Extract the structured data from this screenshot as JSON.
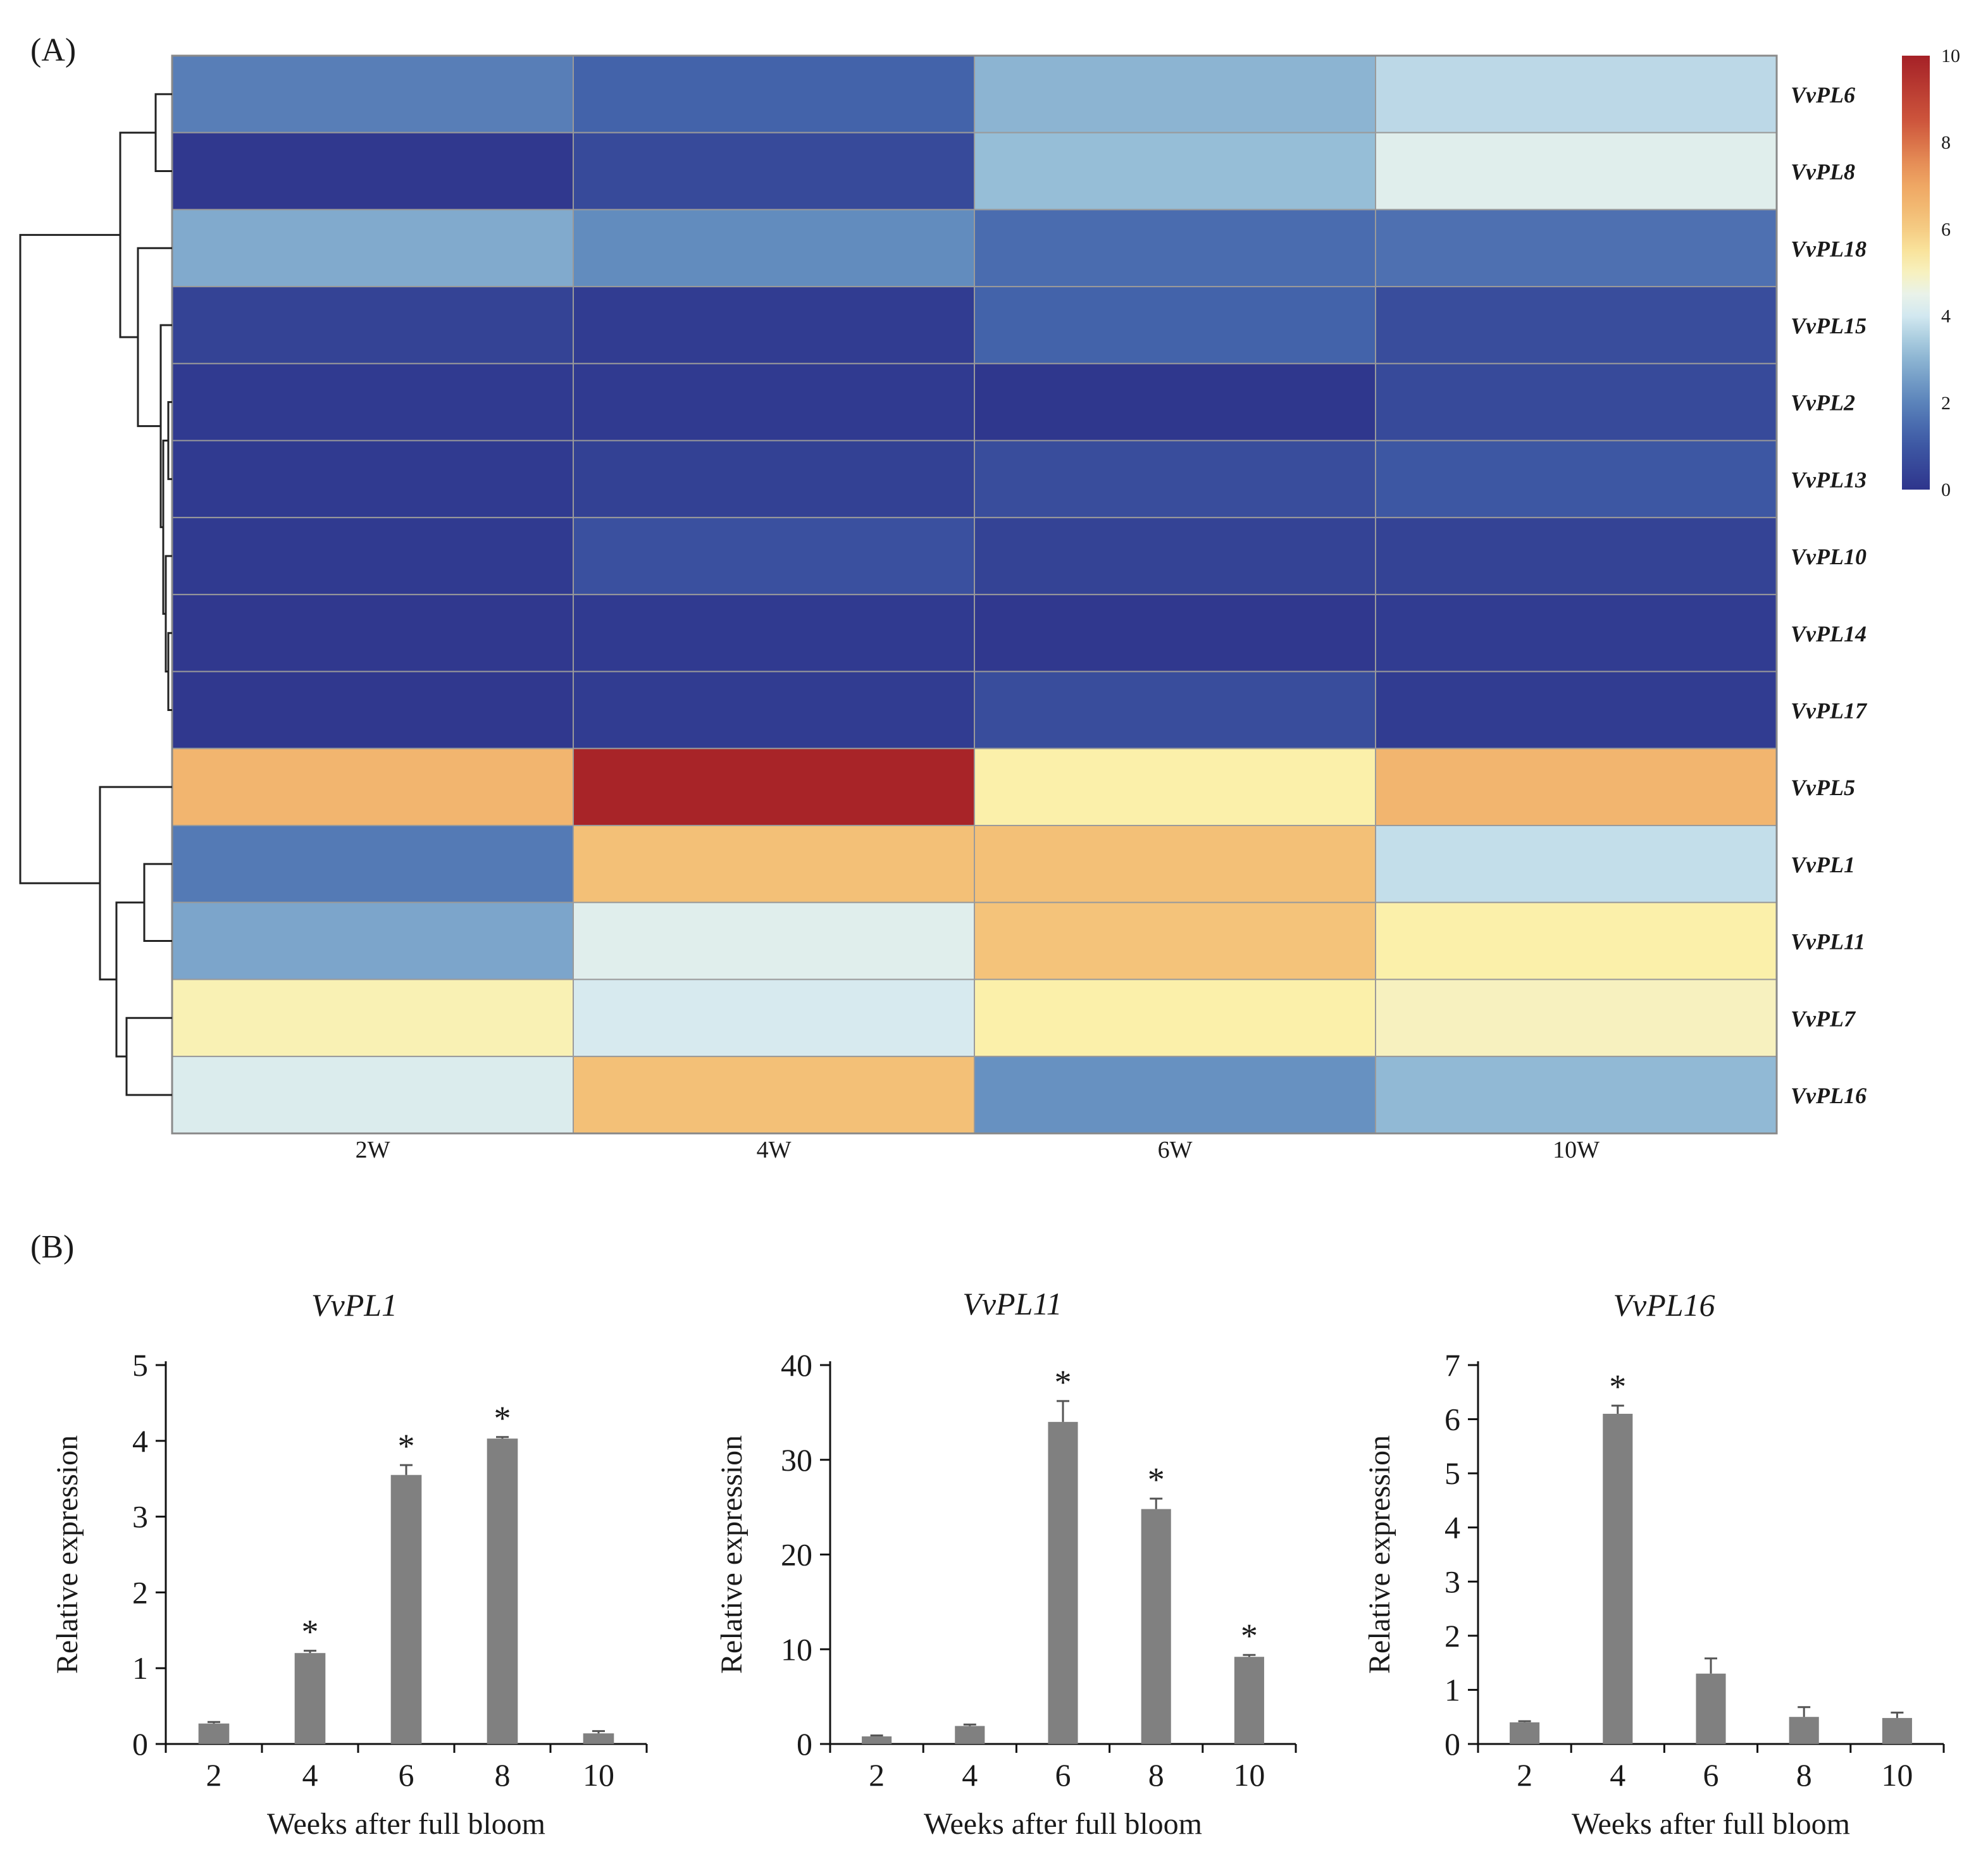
{
  "panel_a_label": "(A)",
  "panel_b_label": "(B)",
  "chart_data": [
    {
      "type": "heatmap",
      "columns": [
        "2W",
        "4W",
        "6W",
        "10W"
      ],
      "rows": [
        "VvPL6",
        "VvPL8",
        "VvPL18",
        "VvPL15",
        "VvPL2",
        "VvPL13",
        "VvPL10",
        "VvPL14",
        "VvPL17",
        "VvPL5",
        "VvPL1",
        "VvPL11",
        "VvPL7",
        "VvPL16"
      ],
      "values": [
        [
          1.9,
          1.3,
          3.0,
          3.7
        ],
        [
          0.1,
          0.6,
          3.2,
          4.3
        ],
        [
          2.8,
          2.2,
          1.5,
          1.6
        ],
        [
          0.4,
          0.2,
          1.3,
          0.7
        ],
        [
          0.15,
          0.15,
          0.05,
          0.6
        ],
        [
          0.15,
          0.35,
          0.7,
          1.0
        ],
        [
          0.15,
          0.8,
          0.4,
          0.4
        ],
        [
          0.1,
          0.15,
          0.1,
          0.2
        ],
        [
          0.1,
          0.2,
          0.7,
          0.2
        ],
        [
          6.6,
          9.9,
          5.2,
          6.6
        ],
        [
          1.8,
          6.3,
          6.3,
          3.8
        ],
        [
          2.7,
          4.3,
          6.2,
          5.2
        ],
        [
          5.1,
          4.1,
          5.2,
          5.0
        ],
        [
          4.2,
          6.3,
          2.3,
          3.1
        ]
      ],
      "colorbar": {
        "min": 0,
        "max": 10,
        "ticks": [
          "10",
          "8",
          "6",
          "4",
          "2",
          "0"
        ]
      },
      "colors": {
        "low": "#2e3a8c",
        "mid": "#fbf4ae",
        "high": "#a52127"
      }
    },
    {
      "type": "bar",
      "title": "VvPL1",
      "categories": [
        "2",
        "4",
        "6",
        "8",
        "10"
      ],
      "values": [
        0.27,
        1.2,
        3.55,
        4.03,
        0.14
      ],
      "errors": [
        0.02,
        0.03,
        0.13,
        0.02,
        0.03
      ],
      "significant": [
        "",
        "*",
        "*",
        "*",
        ""
      ],
      "ylim": [
        0,
        5
      ],
      "yticks": [
        "0",
        "1",
        "2",
        "3",
        "4",
        "5"
      ],
      "xlabel": "Weeks after full bloom",
      "ylabel": "Relative expression",
      "bar_color": "#808080"
    },
    {
      "type": "bar",
      "title": "VvPL11",
      "categories": [
        "2",
        "4",
        "6",
        "8",
        "10"
      ],
      "values": [
        0.8,
        1.9,
        34,
        24.8,
        9.2
      ],
      "errors": [
        0.1,
        0.15,
        2.2,
        1.1,
        0.2
      ],
      "significant": [
        "",
        "",
        "*",
        "*",
        "*"
      ],
      "ylim": [
        0,
        40
      ],
      "yticks": [
        "0",
        "10",
        "20",
        "30",
        "40"
      ],
      "xlabel": "Weeks after full bloom",
      "ylabel": "Relative expression",
      "bar_color": "#808080"
    },
    {
      "type": "bar",
      "title": "VvPL16",
      "categories": [
        "2",
        "4",
        "6",
        "8",
        "10"
      ],
      "values": [
        0.4,
        6.1,
        1.3,
        0.5,
        0.48
      ],
      "errors": [
        0.02,
        0.15,
        0.28,
        0.18,
        0.1
      ],
      "significant": [
        "",
        "*",
        "",
        "",
        ""
      ],
      "ylim": [
        0,
        7
      ],
      "yticks": [
        "0",
        "1",
        "2",
        "3",
        "4",
        "5",
        "6",
        "7"
      ],
      "xlabel": "Weeks after full bloom",
      "ylabel": "Relative expression",
      "bar_color": "#808080"
    }
  ]
}
